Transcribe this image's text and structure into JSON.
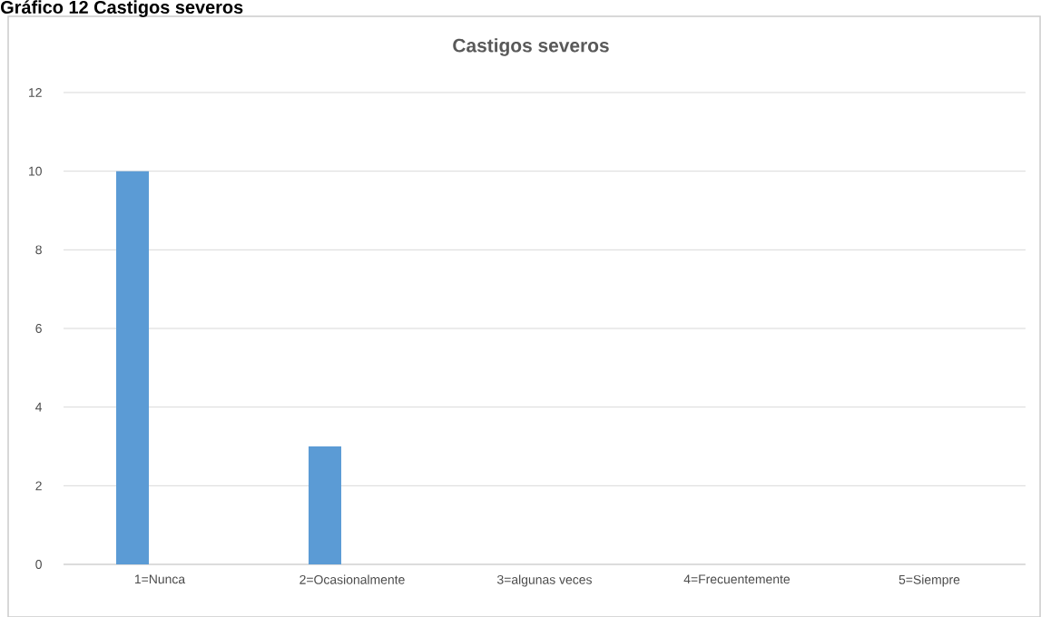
{
  "chart_data": {
    "type": "bar",
    "title": "Castigos severos",
    "annotations": [
      "Gráfico 12 Castigos severos"
    ],
    "categories": [
      "1=Nunca",
      "2=Ocasionalmente",
      "3=algunas veces",
      "4=Frecuentemente",
      "5=Siempre"
    ],
    "values": [
      10,
      3,
      0,
      0,
      0
    ],
    "color": "#5b9bd5",
    "ylim": [
      0,
      12
    ],
    "yticks": [
      0,
      2,
      4,
      6,
      8,
      10,
      12
    ],
    "grid": "y"
  }
}
